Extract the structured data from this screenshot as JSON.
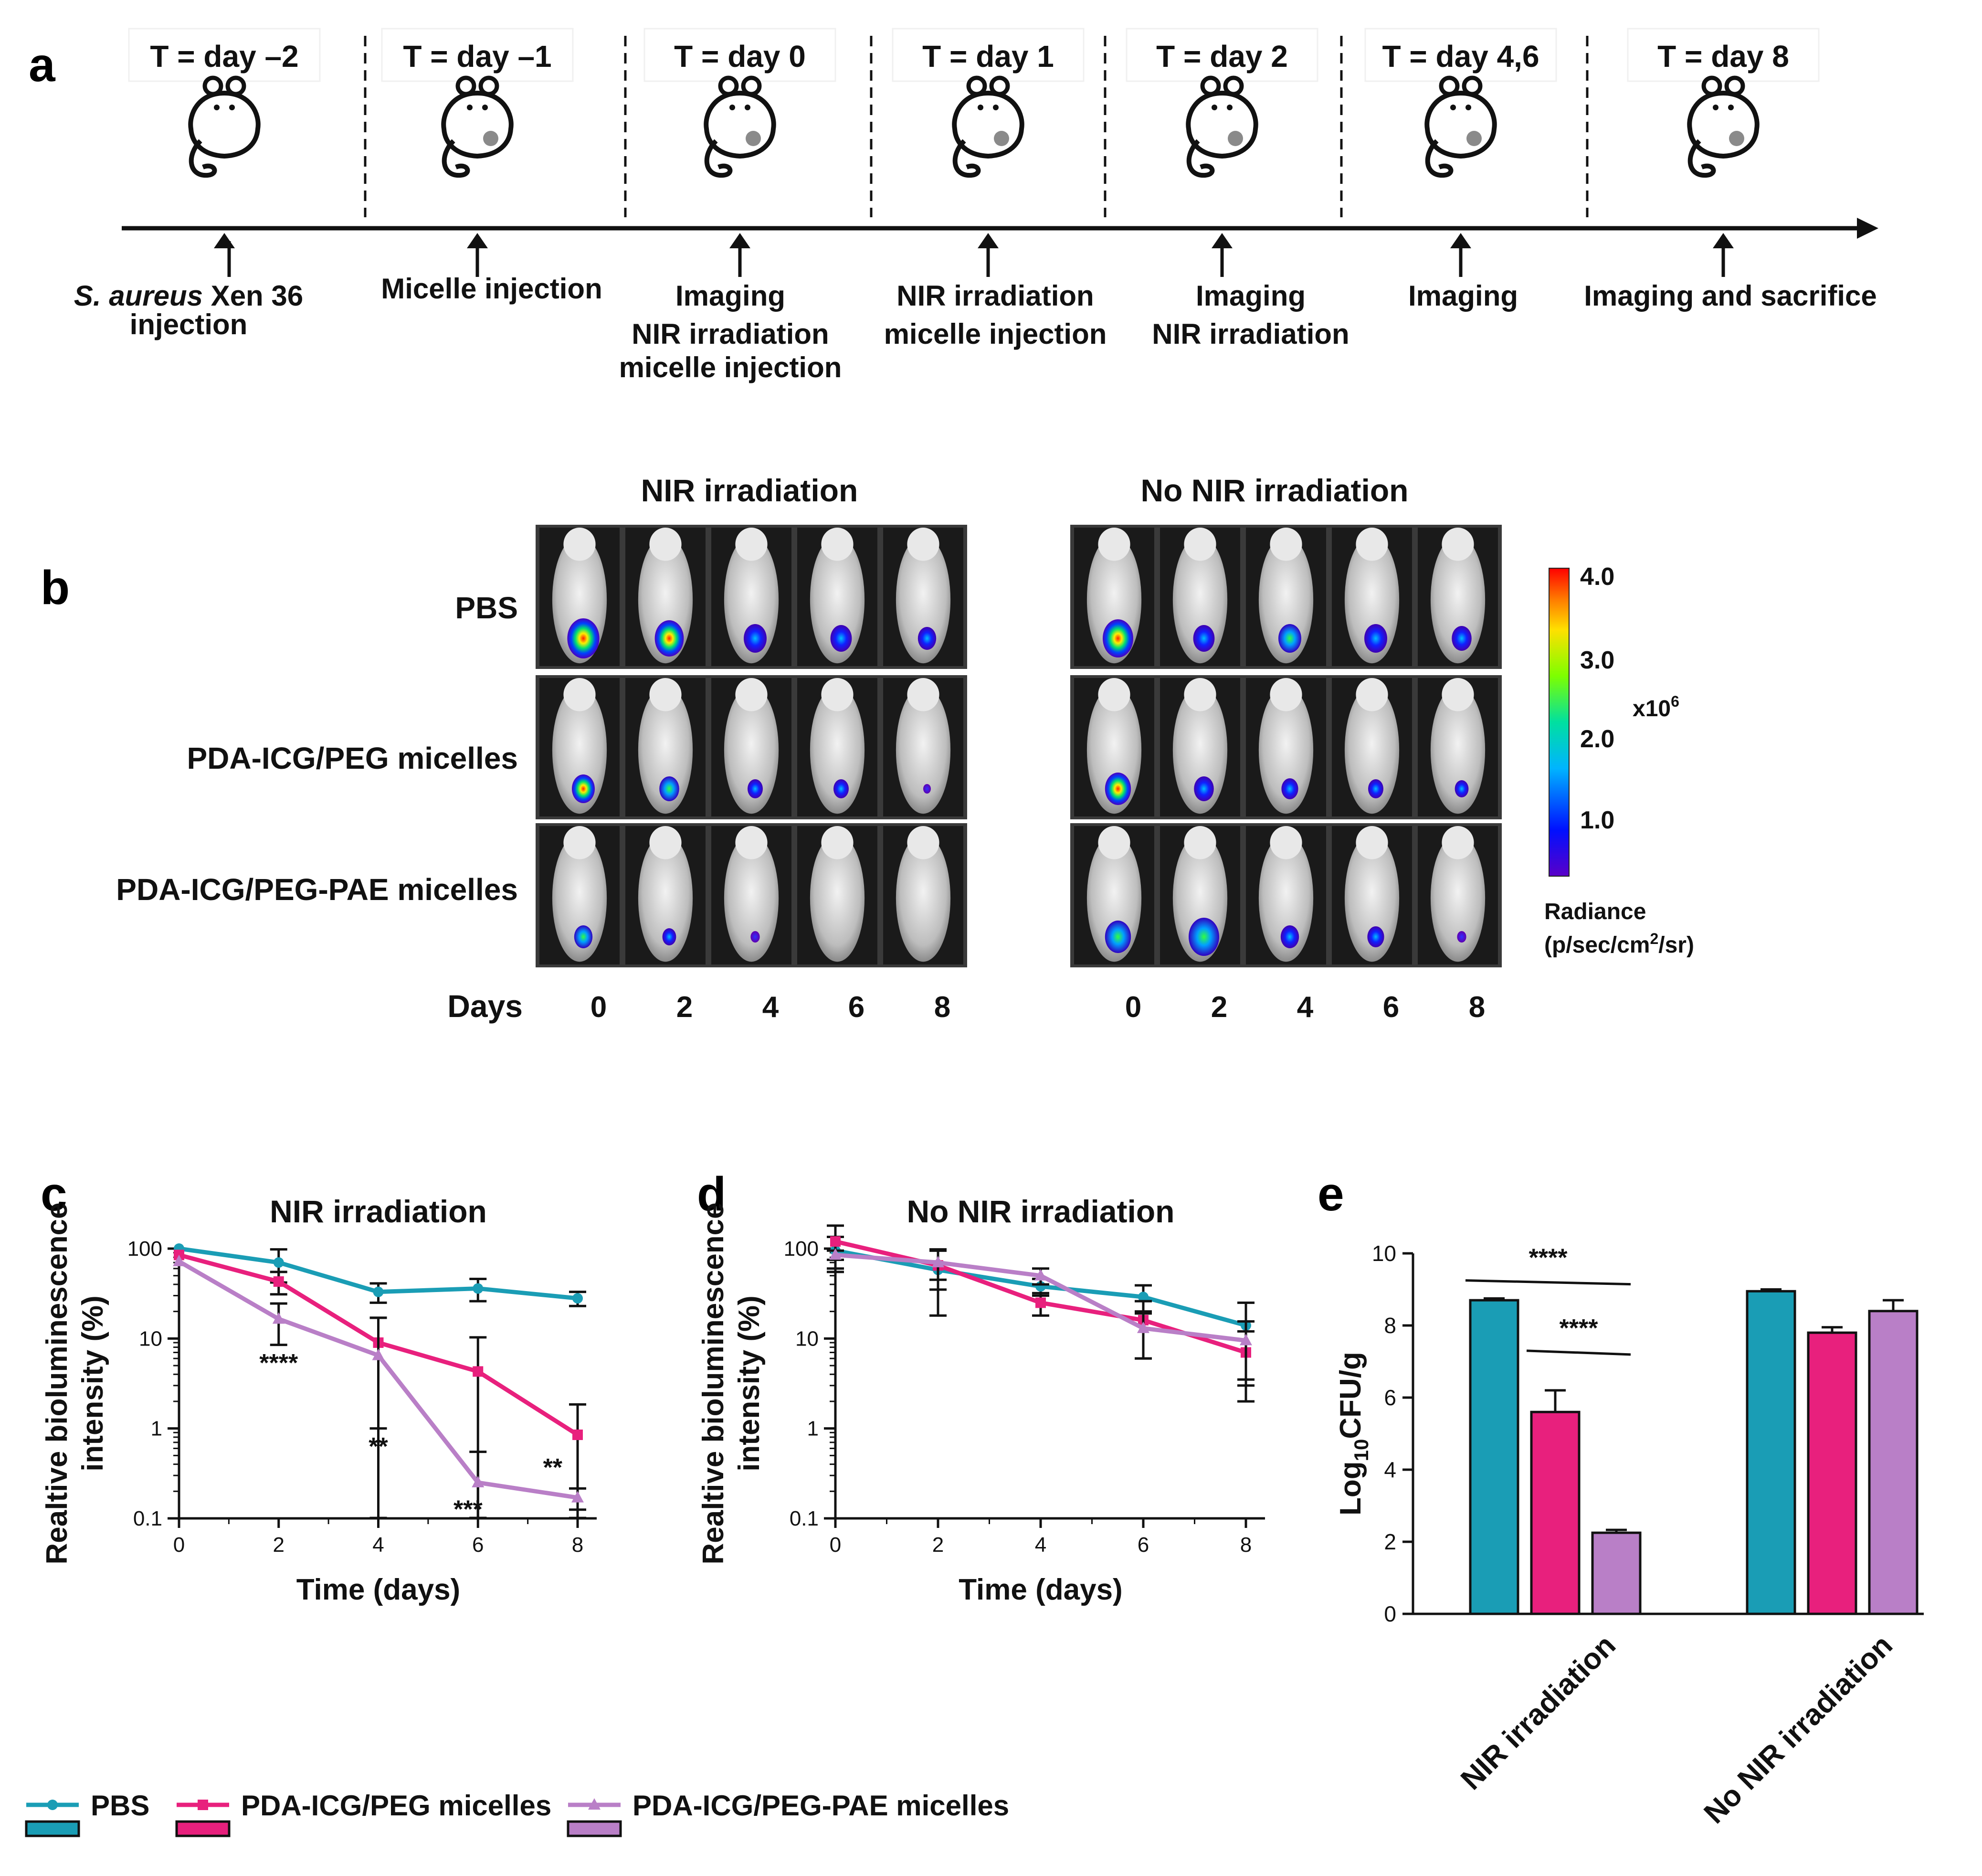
{
  "colors": {
    "pbs": "#1a9db5",
    "peg": "#e8207d",
    "pae": "#b97fc7",
    "text": "#111111",
    "mouse_bg": "#1a1a1a"
  },
  "panel_labels": {
    "a": "a",
    "b": "b",
    "c": "c",
    "d": "d",
    "e": "e"
  },
  "timeline": {
    "days": [
      "T = day –2",
      "T = day –1",
      "T = day 0",
      "T = day 1",
      "T = day 2",
      "T = day 4,6",
      "T = day 8"
    ],
    "events": [
      {
        "line1_italic": "S. aureus",
        "line1_rest": " Xen 36",
        "line2": "injection"
      },
      {
        "line1": "Micelle injection"
      },
      {
        "line1": "Imaging",
        "line2": "NIR irradiation",
        "line3": "micelle injection"
      },
      {
        "line1": "NIR irradiation",
        "line2": "micelle injection"
      },
      {
        "line1": "Imaging",
        "line2": "NIR irradiation"
      },
      {
        "line1": "Imaging"
      },
      {
        "line1": "Imaging and sacrifice"
      }
    ]
  },
  "imaging": {
    "group_titles": [
      "NIR irradiation",
      "No NIR irradiation"
    ],
    "row_labels": [
      "PBS",
      "PDA-ICG/PEG  micelles",
      "PDA-ICG/PEG-PAE  micelles"
    ],
    "days_label": "Days",
    "day_values": [
      "0",
      "2",
      "4",
      "6",
      "8"
    ],
    "colorbar": {
      "ticks": [
        "4.0",
        "3.0",
        "2.0",
        "1.0"
      ],
      "multiplier_base": "x10",
      "multiplier_exp": "6",
      "label_line1": "Radiance",
      "label_line2_pre": "(p/sec/cm",
      "label_line2_sup": "2",
      "label_line2_post": "/sr)"
    }
  },
  "chart_data": [
    {
      "id": "c",
      "type": "line",
      "title": "NIR irradiation",
      "xlabel": "Time (days)",
      "ylabel_line1": "Realtive bioluminescence",
      "ylabel_line2": "intensity (%)",
      "yscale": "log",
      "ylim": [
        0.1,
        100
      ],
      "xlim": [
        0,
        8
      ],
      "x": [
        0,
        2,
        4,
        6,
        8
      ],
      "xticks": [
        "0",
        "2",
        "4",
        "6",
        "8"
      ],
      "yticks": [
        "100",
        "10",
        "1",
        "0.1"
      ],
      "series": [
        {
          "name": "PBS",
          "values": [
            100,
            70,
            33,
            36,
            28
          ],
          "err": [
            0,
            28,
            8,
            10,
            5
          ]
        },
        {
          "name": "PDA-ICG/PEG micelles",
          "values": [
            85,
            43,
            9,
            4.3,
            0.85
          ],
          "err": [
            0,
            12,
            8,
            6,
            1.0
          ]
        },
        {
          "name": "PDA-ICG/PEG-PAE micelles",
          "values": [
            72,
            16.5,
            6.5,
            0.25,
            0.17
          ],
          "err": [
            0,
            8,
            10.5,
            0.3,
            0.045
          ]
        }
      ],
      "annotations": [
        {
          "x": 2,
          "y": 5.5,
          "text": "****"
        },
        {
          "x": 4,
          "y": 0.65,
          "text": "**"
        },
        {
          "x": 5.8,
          "y": 0.13,
          "text": "***"
        },
        {
          "x": 7.5,
          "y": 0.38,
          "text": "**"
        }
      ]
    },
    {
      "id": "d",
      "type": "line",
      "title": "No NIR irradiation",
      "xlabel": "Time (days)",
      "ylabel_line1": "Realtive bioluminescence",
      "ylabel_line2": "intensity (%)",
      "yscale": "log",
      "ylim": [
        0.1,
        100
      ],
      "xlim": [
        0,
        8
      ],
      "x": [
        0,
        2,
        4,
        6,
        8
      ],
      "xticks": [
        "0",
        "2",
        "4",
        "6",
        "8"
      ],
      "yticks": [
        "100",
        "10",
        "1",
        "0.1"
      ],
      "series": [
        {
          "name": "PBS",
          "values": [
            95,
            58,
            38,
            29,
            14
          ],
          "err": [
            40,
            40,
            8,
            10,
            11
          ]
        },
        {
          "name": "PDA-ICG/PEG micelles",
          "values": [
            120,
            65,
            25,
            16,
            7
          ],
          "err": [
            60,
            30,
            7,
            10,
            5
          ]
        },
        {
          "name": "PDA-ICG/PEG-PAE micelles",
          "values": [
            85,
            70,
            50,
            13,
            9.5
          ],
          "err": [
            10,
            25,
            10,
            7,
            6
          ]
        }
      ]
    },
    {
      "id": "e",
      "type": "bar",
      "ylabel_pre": "Log",
      "ylabel_sub": "10",
      "ylabel_post": "CFU/g",
      "ylim": [
        0,
        10
      ],
      "yticks": [
        "0",
        "2",
        "4",
        "6",
        "8",
        "10"
      ],
      "categories": [
        "NIR irradiation",
        "No NIR irradiation"
      ],
      "series": [
        {
          "name": "PBS",
          "values": [
            8.7,
            8.95
          ],
          "err": [
            0.05,
            0.05
          ]
        },
        {
          "name": "PDA-ICG/PEG micelles",
          "values": [
            5.6,
            7.8
          ],
          "err": [
            0.6,
            0.15
          ]
        },
        {
          "name": "PDA-ICG/PEG-PAE micelles",
          "values": [
            2.25,
            8.4
          ],
          "err": [
            0.08,
            0.3
          ]
        }
      ],
      "significance": [
        {
          "from": 0,
          "to": 2,
          "y": 9.25,
          "text": "****"
        },
        {
          "from": 1,
          "to": 2,
          "y": 7.3,
          "text": "****"
        }
      ]
    }
  ],
  "legend": [
    {
      "name": "PBS",
      "color_key": "pbs",
      "marker": "circle"
    },
    {
      "name": "PDA-ICG/PEG micelles",
      "color_key": "peg",
      "marker": "square"
    },
    {
      "name": "PDA-ICG/PEG-PAE micelles",
      "color_key": "pae",
      "marker": "triangle"
    }
  ]
}
